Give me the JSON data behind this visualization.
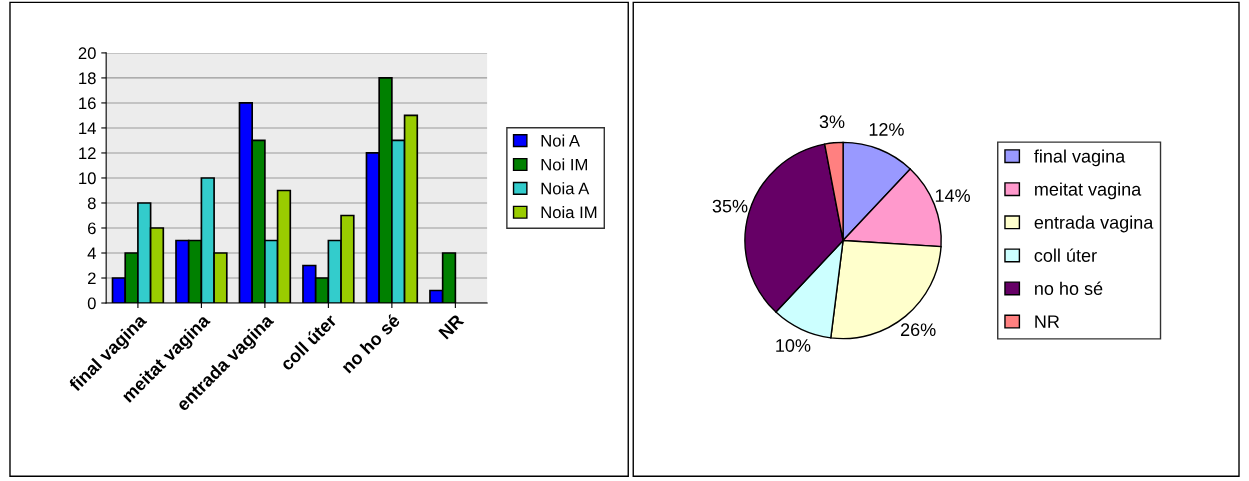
{
  "chart_data": [
    {
      "type": "bar",
      "categories": [
        "final vagina",
        "meitat vagina",
        "entrada vagina",
        "coll úter",
        "no ho sé",
        "NR"
      ],
      "series": [
        {
          "name": "Noi A",
          "color": "#0000ff",
          "values": [
            2,
            5,
            16,
            3,
            12,
            1
          ]
        },
        {
          "name": "Noi IM",
          "color": "#008000",
          "values": [
            4,
            5,
            13,
            2,
            18,
            4
          ]
        },
        {
          "name": "Noia A",
          "color": "#33cccc",
          "values": [
            8,
            10,
            5,
            5,
            13,
            null
          ]
        },
        {
          "name": "Noia IM",
          "color": "#99cc00",
          "values": [
            6,
            4,
            9,
            7,
            15,
            null
          ]
        }
      ],
      "ylim": [
        0,
        20
      ],
      "yticks": [
        0,
        2,
        4,
        6,
        8,
        10,
        12,
        14,
        16,
        18,
        20
      ],
      "grid": "y",
      "legend": "right"
    },
    {
      "type": "pie",
      "categories": [
        "final vagina",
        "meitat vagina",
        "entrada vagina",
        "coll úter",
        "no ho sé",
        "NR"
      ],
      "values": [
        12,
        14,
        26,
        10,
        35,
        3
      ],
      "value_labels": [
        "12%",
        "14%",
        "26%",
        "10%",
        "35%",
        "3%"
      ],
      "colors": [
        "#9999ff",
        "#ff99cc",
        "#ffffcc",
        "#ccffff",
        "#660066",
        "#ff8080"
      ],
      "legend": "right"
    }
  ]
}
